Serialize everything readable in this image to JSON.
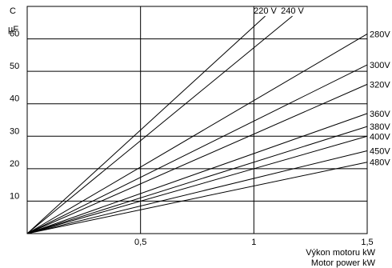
{
  "chart_data": {
    "type": "line",
    "title": "",
    "y_label_symbol": "C",
    "y_label_unit": "µF",
    "x_label_cz": "Výkon motoru kW",
    "x_label_en": "Motor power kW",
    "xlim": [
      0,
      1.5
    ],
    "ylim": [
      0,
      70
    ],
    "x_ticks": [
      {
        "value": 0.5,
        "label": "0,5"
      },
      {
        "value": 1,
        "label": "1"
      },
      {
        "value": 1.5,
        "label": "1,5"
      }
    ],
    "y_ticks": [
      {
        "value": 10,
        "label": "10"
      },
      {
        "value": 20,
        "label": "20"
      },
      {
        "value": 30,
        "label": "30"
      },
      {
        "value": 40,
        "label": "40"
      },
      {
        "value": 50,
        "label": "50"
      },
      {
        "value": 60,
        "label": "60"
      }
    ],
    "grid": true,
    "series": [
      {
        "name": "220 V",
        "x": [
          0,
          1.05
        ],
        "y": [
          0,
          67
        ]
      },
      {
        "name": "240 V",
        "x": [
          0,
          1.17
        ],
        "y": [
          0,
          67
        ]
      },
      {
        "name": "280V",
        "x": [
          0,
          1.5
        ],
        "y": [
          0,
          61.5
        ]
      },
      {
        "name": "300V",
        "x": [
          0,
          1.5
        ],
        "y": [
          0,
          52
        ]
      },
      {
        "name": "320V",
        "x": [
          0,
          1.5
        ],
        "y": [
          0,
          46
        ]
      },
      {
        "name": "360V",
        "x": [
          0,
          1.5
        ],
        "y": [
          0,
          37
        ]
      },
      {
        "name": "380V",
        "x": [
          0,
          1.5
        ],
        "y": [
          0,
          33
        ]
      },
      {
        "name": "400V",
        "x": [
          0,
          1.5
        ],
        "y": [
          0,
          30
        ]
      },
      {
        "name": "450V",
        "x": [
          0,
          1.5
        ],
        "y": [
          0,
          25.5
        ]
      },
      {
        "name": "480V",
        "x": [
          0,
          1.5
        ],
        "y": [
          0,
          22
        ]
      }
    ]
  }
}
